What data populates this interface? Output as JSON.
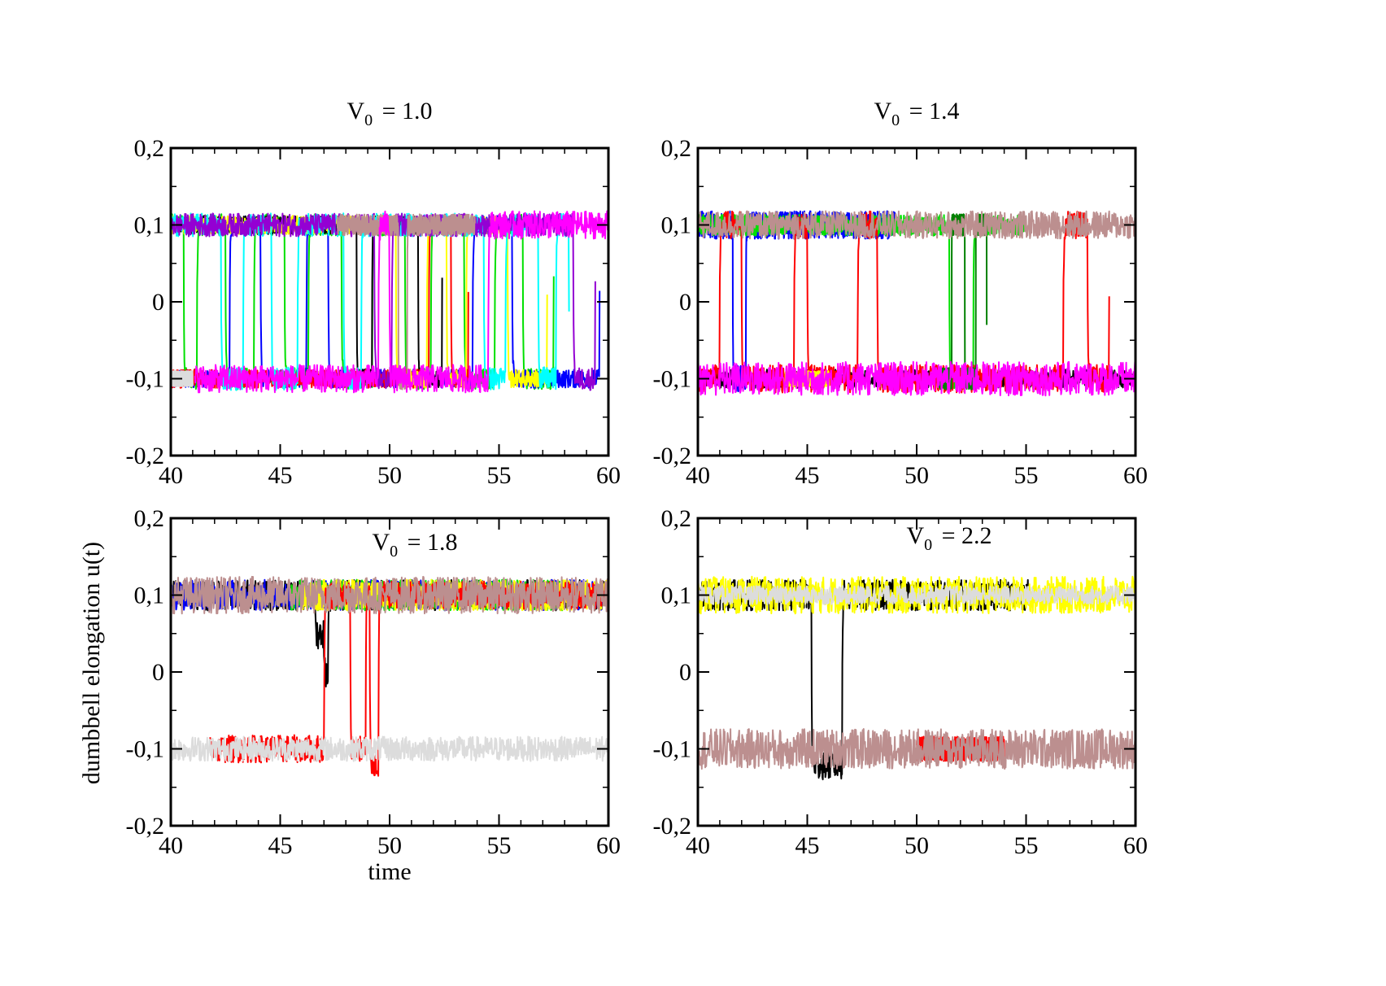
{
  "figure": {
    "xlabel": "time",
    "ylabel": "dumbbell elongation u(t)",
    "colors": {
      "black": "#000000",
      "red": "#ff0000",
      "green": "#00e000",
      "blue": "#0000ff",
      "yellow": "#ffff00",
      "cyan": "#00ffff",
      "magenta": "#ff00ff",
      "purple": "#9400d3",
      "brown": "#bc8f8f",
      "darkgreen": "#008000",
      "lightgray": "#dcdcdc"
    }
  },
  "chart_data": [
    {
      "type": "line",
      "title_prefix": "V",
      "title_sub": "0",
      "title_suffix": "= 1.0",
      "xlim": [
        40,
        60
      ],
      "ylim": [
        -0.2,
        0.2
      ],
      "xticks": [
        40,
        45,
        50,
        55,
        60
      ],
      "xtick_labels": [
        "40",
        "45",
        "50",
        "55",
        "60"
      ],
      "yticks": [
        -0.2,
        -0.1,
        0,
        0.1,
        0.2
      ],
      "ytick_labels": [
        "-0,2",
        "-0,1",
        "0",
        "0,1",
        "0,2"
      ],
      "show_xlabel": true,
      "show_ylabel": false,
      "series": [
        {
          "color": "green",
          "level": 0.1,
          "amp": 0.014,
          "switches": [
            [
              40,
              0.1
            ],
            [
              40.6,
              -0.1
            ],
            [
              41.2,
              0.1
            ],
            [
              42.5,
              -0.1
            ],
            [
              43.8,
              0.1
            ],
            [
              45.2,
              -0.1
            ],
            [
              46.3,
              0.1
            ],
            [
              47.8,
              -0.1
            ],
            [
              49.2,
              0.1
            ],
            [
              50.7,
              -0.1
            ],
            [
              51.9,
              0.1
            ],
            [
              53.4,
              -0.1
            ],
            [
              54.8,
              0.1
            ],
            [
              56.1,
              -0.1
            ],
            [
              57.5,
              0.1
            ]
          ]
        },
        {
          "color": "blue",
          "level": -0.1,
          "amp": 0.012,
          "switches": [
            [
              40,
              -0.1
            ],
            [
              42.7,
              0.1
            ],
            [
              44.1,
              -0.1
            ],
            [
              46.2,
              0.1
            ],
            [
              47.2,
              -0.1
            ],
            [
              53.8,
              0.1
            ],
            [
              55.6,
              -0.1
            ],
            [
              59.6,
              0.1
            ]
          ]
        },
        {
          "color": "black",
          "level": 0.1,
          "amp": 0.012,
          "switches": [
            [
              40,
              0.1
            ],
            [
              48.5,
              -0.1
            ],
            [
              49.2,
              0.1
            ],
            [
              51.3,
              -0.1
            ],
            [
              52.4,
              0.1
            ]
          ]
        },
        {
          "color": "red",
          "level": -0.1,
          "amp": 0.012,
          "switches": [
            [
              40,
              -0.1
            ],
            [
              51.8,
              0.1
            ],
            [
              52.8,
              -0.1
            ],
            [
              53.6,
              0.1
            ]
          ]
        },
        {
          "color": "yellow",
          "level": 0.1,
          "amp": 0.012,
          "switches": [
            [
              40,
              0.1
            ],
            [
              50.3,
              -0.1
            ],
            [
              51.7,
              0.1
            ],
            [
              52.6,
              -0.1
            ],
            [
              53.5,
              0.1
            ],
            [
              55.4,
              -0.1
            ],
            [
              57.2,
              0.1
            ]
          ]
        },
        {
          "color": "cyan",
          "level": 0.1,
          "amp": 0.015,
          "switches": [
            [
              40,
              0.1
            ],
            [
              42.3,
              -0.1
            ],
            [
              43.3,
              0.1
            ],
            [
              44.6,
              -0.1
            ],
            [
              45.8,
              0.1
            ],
            [
              47.9,
              -0.1
            ],
            [
              48.7,
              0.1
            ],
            [
              54.3,
              -0.1
            ],
            [
              55.3,
              0.1
            ],
            [
              56.8,
              -0.1
            ],
            [
              57.6,
              0.1
            ],
            [
              58.2,
              -0.1
            ]
          ]
        },
        {
          "color": "purple",
          "level": 0.1,
          "amp": 0.015,
          "switches": [
            [
              40,
              0.1
            ],
            [
              44.5,
              0.1
            ],
            [
              46.0,
              0.1
            ],
            [
              47.2,
              0.1
            ],
            [
              49.3,
              -0.1
            ],
            [
              50.1,
              0.1
            ],
            [
              58.4,
              -0.1
            ],
            [
              59.4,
              0.1
            ]
          ]
        },
        {
          "color": "brown",
          "level": 0.1,
          "amp": 0.014,
          "switches": [
            [
              47.6,
              0.1
            ],
            [
              50.4,
              -0.1
            ],
            [
              50.8,
              0.1
            ],
            [
              53.9,
              0.1
            ]
          ]
        },
        {
          "color": "magenta",
          "level": -0.1,
          "amp": 0.018,
          "switches": [
            [
              41.1,
              -0.1
            ],
            [
              49.5,
              0.1
            ],
            [
              50.0,
              -0.1
            ],
            [
              54.5,
              0.1
            ],
            [
              60.0,
              0.1
            ]
          ]
        },
        {
          "color": "lightgray",
          "level": -0.1,
          "amp": 0.01,
          "switches": [
            [
              40,
              -0.1
            ],
            [
              41.0,
              -0.1
            ]
          ]
        }
      ]
    },
    {
      "type": "line",
      "title_prefix": "V",
      "title_sub": "0",
      "title_suffix": "= 1.4",
      "xlim": [
        40,
        60
      ],
      "ylim": [
        -0.2,
        0.2
      ],
      "xticks": [
        40,
        45,
        50,
        55,
        60
      ],
      "xtick_labels": [
        "40",
        "45",
        "50",
        "55",
        "60"
      ],
      "yticks": [
        -0.2,
        -0.1,
        0,
        0.1,
        0.2
      ],
      "ytick_labels": [
        "-0,2",
        "-0,1",
        "0",
        "0,1",
        "0,2"
      ],
      "show_xlabel": false,
      "show_ylabel": false,
      "series": [
        {
          "color": "black",
          "level": -0.1,
          "amp": 0.012,
          "switches": [
            [
              40,
              -0.1
            ],
            [
              60,
              -0.1
            ]
          ]
        },
        {
          "color": "blue",
          "level": 0.1,
          "amp": 0.018,
          "switches": [
            [
              40,
              0.1
            ],
            [
              41.6,
              -0.1
            ],
            [
              42.2,
              0.1
            ],
            [
              49.0,
              0.1
            ]
          ]
        },
        {
          "color": "green",
          "level": 0.1,
          "amp": 0.014,
          "switches": [
            [
              40,
              0.1
            ],
            [
              51.5,
              -0.1
            ],
            [
              52.6,
              0.1
            ],
            [
              55.0,
              0.1
            ]
          ]
        },
        {
          "color": "red",
          "level": -0.1,
          "amp": 0.018,
          "switches": [
            [
              40,
              -0.1
            ],
            [
              41.0,
              0.1
            ],
            [
              42.0,
              -0.1
            ],
            [
              44.4,
              0.1
            ],
            [
              45.0,
              -0.1
            ],
            [
              47.3,
              0.1
            ],
            [
              48.2,
              -0.1
            ],
            [
              56.7,
              0.1
            ],
            [
              57.8,
              -0.1
            ],
            [
              58.8,
              0.1
            ]
          ]
        },
        {
          "color": "yellow",
          "level": -0.1,
          "amp": 0.01,
          "switches": [
            [
              44.0,
              -0.1
            ],
            [
              46.0,
              -0.1
            ]
          ]
        },
        {
          "color": "darkgreen",
          "level": -0.1,
          "amp": 0.014,
          "switches": [
            [
              51.0,
              -0.1
            ],
            [
              51.6,
              0.1
            ],
            [
              52.2,
              -0.1
            ],
            [
              52.7,
              0.1
            ],
            [
              53.2,
              -0.1
            ]
          ]
        },
        {
          "color": "magenta",
          "level": -0.1,
          "amp": 0.022,
          "switches": [
            [
              40,
              -0.1
            ],
            [
              60,
              -0.1
            ]
          ]
        },
        {
          "color": "brown",
          "level": 0.1,
          "amp": 0.018,
          "switches": [
            [
              40,
              0.1
            ],
            [
              60,
              0.1
            ]
          ]
        }
      ]
    },
    {
      "type": "line",
      "title_prefix": "V",
      "title_sub": "0",
      "title_suffix": "= 1.8",
      "xlim": [
        40,
        60
      ],
      "ylim": [
        -0.2,
        0.2
      ],
      "xticks": [
        40,
        45,
        50,
        55,
        60
      ],
      "xtick_labels": [
        "40",
        "45",
        "50",
        "55",
        "60"
      ],
      "yticks": [
        -0.2,
        -0.1,
        0,
        0.1,
        0.2
      ],
      "ytick_labels": [
        "-0,2",
        "-0,1",
        "0",
        "0,1",
        "0,2"
      ],
      "show_xlabel": true,
      "show_ylabel": true,
      "series": [
        {
          "color": "black",
          "level": 0.1,
          "amp": 0.02,
          "switches": [
            [
              40,
              0.1
            ],
            [
              46.6,
              0.05
            ],
            [
              47.0,
              0.0
            ],
            [
              47.2,
              0.1
            ],
            [
              60,
              0.1
            ]
          ]
        },
        {
          "color": "blue",
          "level": 0.1,
          "amp": 0.02,
          "switches": [
            [
              40,
              0.1
            ],
            [
              60,
              0.1
            ]
          ]
        },
        {
          "color": "green",
          "level": 0.1,
          "amp": 0.02,
          "switches": [
            [
              45.5,
              0.1
            ],
            [
              58.0,
              0.1
            ]
          ]
        },
        {
          "color": "yellow",
          "level": 0.1,
          "amp": 0.02,
          "switches": [
            [
              46.0,
              0.1
            ],
            [
              60,
              0.1
            ]
          ]
        },
        {
          "color": "red",
          "level": -0.1,
          "amp": 0.018,
          "switches": [
            [
              41.8,
              -0.1
            ],
            [
              47.0,
              0.1
            ],
            [
              48.2,
              -0.1
            ],
            [
              48.9,
              0.1
            ],
            [
              49.1,
              -0.12
            ],
            [
              49.5,
              0.1
            ],
            [
              60,
              0.1
            ]
          ]
        },
        {
          "color": "brown",
          "level": 0.1,
          "amp": 0.024,
          "switches": [
            [
              40,
              0.1
            ],
            [
              60,
              0.1
            ]
          ]
        },
        {
          "color": "lightgray",
          "level": -0.1,
          "amp": 0.016,
          "switches": [
            [
              40,
              -0.1
            ],
            [
              60,
              -0.1
            ]
          ]
        }
      ]
    },
    {
      "type": "line",
      "title_prefix": "V",
      "title_sub": "0",
      "title_suffix": "= 2.2",
      "xlim": [
        40,
        60
      ],
      "ylim": [
        -0.2,
        0.2
      ],
      "xticks": [
        40,
        45,
        50,
        55,
        60
      ],
      "xtick_labels": [
        "40",
        "45",
        "50",
        "55",
        "60"
      ],
      "yticks": [
        -0.2,
        -0.1,
        0,
        0.1,
        0.2
      ],
      "ytick_labels": [
        "-0,2",
        "-0,1",
        "0",
        "0,1",
        "0,2"
      ],
      "show_xlabel": false,
      "show_ylabel": false,
      "series": [
        {
          "color": "black",
          "level": 0.1,
          "amp": 0.02,
          "switches": [
            [
              40,
              0.1
            ],
            [
              45.2,
              -0.12
            ],
            [
              46.6,
              0.1
            ],
            [
              55.2,
              0.1
            ]
          ]
        },
        {
          "color": "yellow",
          "level": 0.1,
          "amp": 0.024,
          "switches": [
            [
              40,
              0.1
            ],
            [
              60,
              0.1
            ]
          ]
        },
        {
          "color": "lightgray",
          "level": 0.1,
          "amp": 0.012,
          "switches": [
            [
              40,
              0.1
            ],
            [
              60,
              0.1
            ]
          ]
        },
        {
          "color": "red",
          "level": -0.1,
          "amp": 0.016,
          "switches": [
            [
              50.0,
              -0.1
            ],
            [
              54.0,
              -0.1
            ]
          ]
        },
        {
          "color": "brown",
          "level": -0.1,
          "amp": 0.026,
          "switches": [
            [
              40,
              -0.1
            ],
            [
              60,
              -0.1
            ]
          ]
        }
      ]
    }
  ]
}
